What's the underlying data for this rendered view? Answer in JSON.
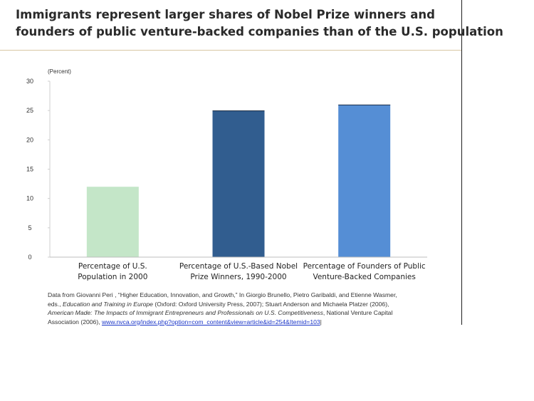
{
  "title_lines": [
    "Immigrants represent larger shares of Nobel Prize winners and",
    "founders of public venture-backed companies than of the U.S. population"
  ],
  "chart_data": {
    "type": "bar",
    "title": "",
    "xlabel": "",
    "ylabel": "(Percent)",
    "ylim": [
      0,
      30
    ],
    "yticks": [
      0,
      5,
      10,
      15,
      20,
      25,
      30
    ],
    "grid": false,
    "legend": "none",
    "categories": [
      [
        "Percentage of U.S.",
        "Population in 2000"
      ],
      [
        "Percentage of U.S.-Based Nobel",
        "Prize Winners, 1990-2000"
      ],
      [
        "Percentage of Founders of Public",
        "Venture-Backed Companies"
      ]
    ],
    "values": [
      12,
      25,
      26
    ],
    "colors": [
      "#c4e6c8",
      "#315d8f",
      "#558ed5"
    ]
  },
  "source": {
    "line1": "Data from Giovanni Peri , “Higher Education, Innovation, and Growth,” In Giorgio Brunello, Pietro Garibaldi, and Etienne Wasmer,",
    "line2_pre": "eds., ",
    "line2_italic": "Education and Training in Europe",
    "line2_post": " (Oxford: Oxford University Press, 2007); Stuart Anderson and Michaela Platzer (2006),",
    "line3_italic": "American Made: The Impacts of Immigrant Entrepreneurs and Professionals on U.S. Competitiveness",
    "line3_post": ", National Venture Capital",
    "line4_pre": "Association (2006), ",
    "link_text": "www.nvca.org/index.php?option=com_content&view=article&id=254&Itemid=103",
    "line4_post": "|"
  }
}
